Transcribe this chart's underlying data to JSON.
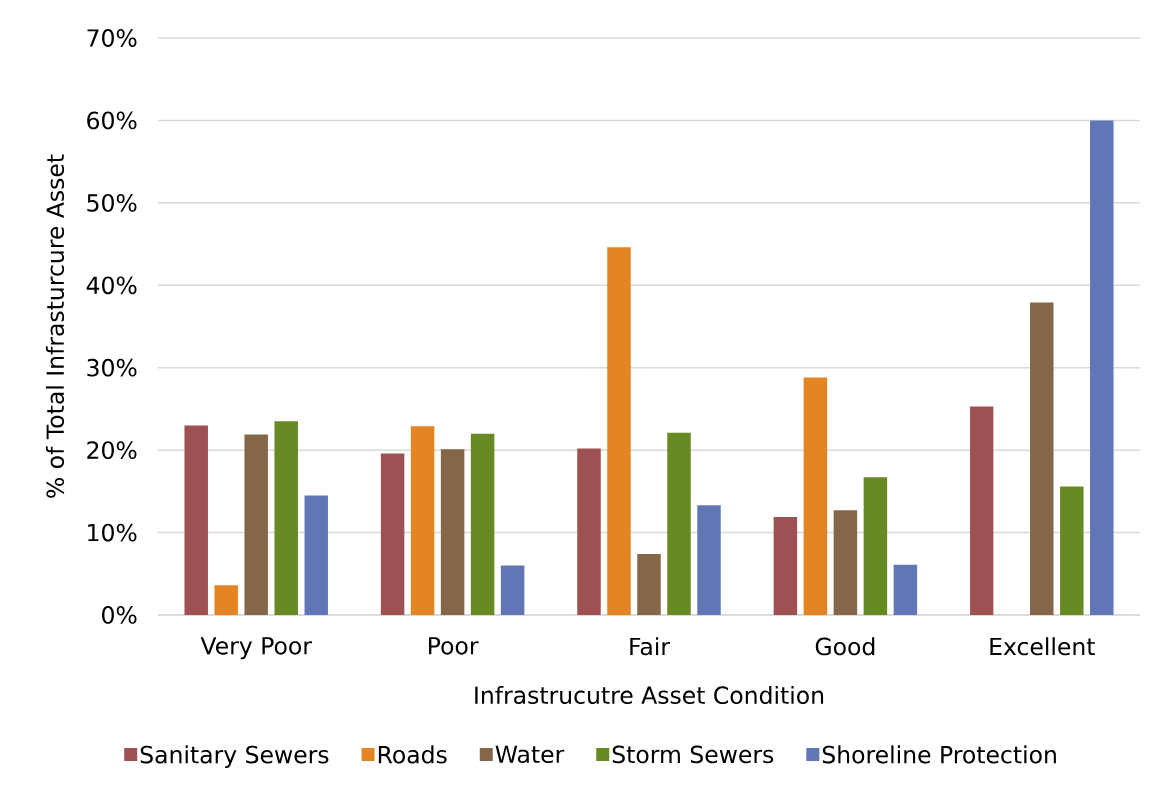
{
  "chart_data": {
    "type": "bar",
    "categories": [
      "Very Poor",
      "Poor",
      "Fair",
      "Good",
      "Excellent"
    ],
    "xlabel": "Infrastrucutre Asset Condition",
    "ylabel": "% of Total Infrasturcure Asset",
    "series": [
      {
        "name": "Sanitary Sewers",
        "color": "#9e5152",
        "values": [
          23.0,
          19.6,
          20.2,
          11.9,
          25.3
        ]
      },
      {
        "name": "Roads",
        "color": "#e58422",
        "values": [
          3.6,
          22.9,
          44.6,
          28.8,
          null
        ]
      },
      {
        "name": "Water",
        "color": "#846748",
        "values": [
          21.9,
          20.1,
          7.4,
          12.7,
          37.9
        ]
      },
      {
        "name": "Storm Sewers",
        "color": "#678a22",
        "values": [
          23.5,
          22.0,
          22.1,
          16.7,
          15.6
        ]
      },
      {
        "name": "Shoreline Protection",
        "color": "#6176b4",
        "values": [
          14.5,
          6.0,
          13.3,
          6.1,
          60.0
        ]
      }
    ],
    "ylim": [
      0,
      70
    ],
    "yticks": [
      {
        "value": 0,
        "label": "0%"
      },
      {
        "value": 10,
        "label": "10%"
      },
      {
        "value": 20,
        "label": "20%"
      },
      {
        "value": 30,
        "label": "30%"
      },
      {
        "value": 40,
        "label": "40%"
      },
      {
        "value": 50,
        "label": "50%"
      },
      {
        "value": 60,
        "label": "60%"
      },
      {
        "value": 70,
        "label": "70%"
      }
    ],
    "grid": "y",
    "legend": "bottom"
  }
}
